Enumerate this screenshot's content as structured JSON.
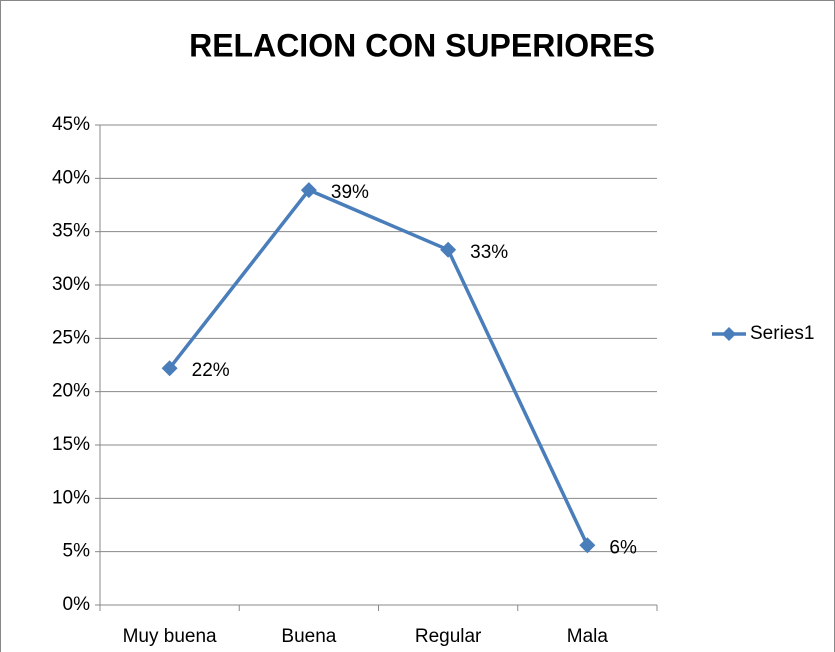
{
  "chart_data": {
    "type": "line",
    "title": "RELACION CON SUPERIORES",
    "categories": [
      "Muy buena",
      "Buena",
      "Regular",
      "Mala"
    ],
    "series": [
      {
        "name": "Series1",
        "color": "#4a7ebb",
        "values": [
          22.2,
          38.9,
          33.3,
          5.6
        ],
        "value_labels": [
          "22%",
          "39%",
          "33%",
          "6%"
        ]
      }
    ],
    "ylim": [
      0,
      45
    ],
    "yticks": [
      {
        "value": 0,
        "label": "0%"
      },
      {
        "value": 5,
        "label": "5%"
      },
      {
        "value": 10,
        "label": "10%"
      },
      {
        "value": 15,
        "label": "15%"
      },
      {
        "value": 20,
        "label": "20%"
      },
      {
        "value": 25,
        "label": "25%"
      },
      {
        "value": 30,
        "label": "30%"
      },
      {
        "value": 35,
        "label": "35%"
      },
      {
        "value": 40,
        "label": "40%"
      },
      {
        "value": 45,
        "label": "45%"
      }
    ],
    "grid": true,
    "legend": "right"
  }
}
